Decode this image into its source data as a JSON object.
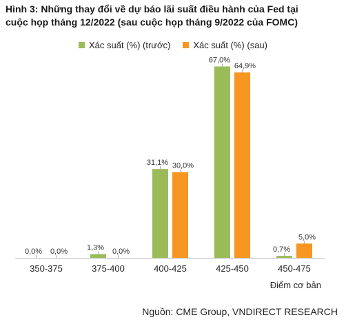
{
  "header": {
    "title_line1": "Hình 3: Những thay đổi về dự báo lãi suất điều hành của Fed tại",
    "title_line2": "cuộc họp tháng 12/2022 (sau cuộc họp tháng 9/2022 của FOMC)"
  },
  "footer": {
    "source": "Nguồn: CME Group, VNDIRECT RESEARCH"
  },
  "chart_data": {
    "type": "bar",
    "title": "Hình 3: Những thay đổi về dự báo lãi suất điều hành của Fed tại cuộc họp tháng 12/2022 (sau cuộc họp tháng 9/2022 của FOMC)",
    "xlabel": "Điểm cơ bản",
    "ylabel": "",
    "ylim": [
      0,
      70
    ],
    "grid": false,
    "legend_position": "top",
    "categories": [
      "350-375",
      "375-400",
      "400-425",
      "425-450",
      "450-475"
    ],
    "series": [
      {
        "name": "Xác suất (%) (trước)",
        "color": "#9bbb59",
        "values": [
          0.0,
          1.3,
          31.1,
          67.0,
          0.7
        ],
        "labels": [
          "0,0%",
          "1,3%",
          "31,1%",
          "67,0%",
          "0,7%"
        ]
      },
      {
        "name": "Xác suất (%) (sau)",
        "color": "#f79620",
        "values": [
          0.0,
          0.0,
          30.0,
          64.9,
          5.0
        ],
        "labels": [
          "0,0%",
          "0,0%",
          "30,0%",
          "64,9%",
          "5,0%"
        ]
      }
    ]
  }
}
